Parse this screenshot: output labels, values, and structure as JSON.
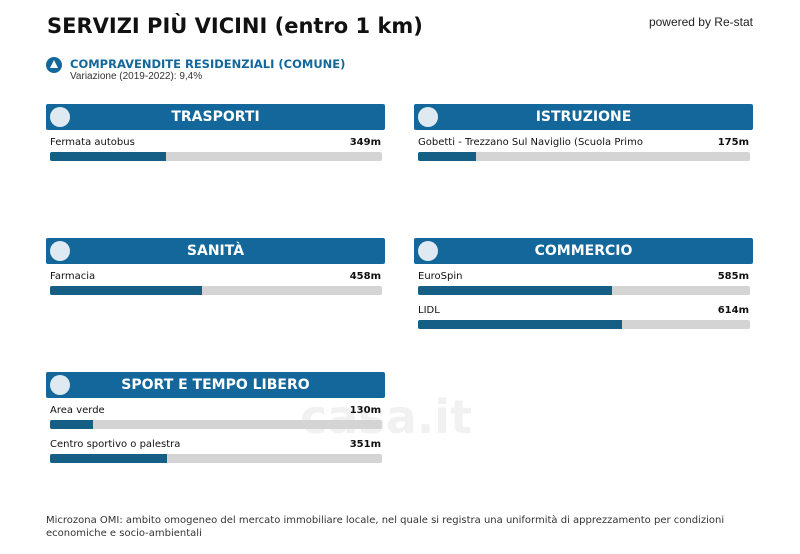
{
  "header": {
    "title": "SERVIZI PIÙ VICINI (entro 1 km)",
    "powered_by": "powered by Re-stat"
  },
  "indicator": {
    "label": "COMPRAVENDITE RESIDENZIALI (COMUNE)",
    "detail": "Variazione (2019-2022): 9,4%"
  },
  "bar_max": 1000,
  "sections": [
    {
      "title": "TRASPORTI",
      "items": [
        {
          "name": "Fermata autobus",
          "distance": 349,
          "distance_label": "349m"
        }
      ]
    },
    {
      "title": "ISTRUZIONE",
      "items": [
        {
          "name": "Gobetti - Trezzano Sul Naviglio (Scuola Primo",
          "distance": 175,
          "distance_label": "175m"
        }
      ]
    },
    {
      "title": "SANITÀ",
      "items": [
        {
          "name": "Farmacia",
          "distance": 458,
          "distance_label": "458m"
        }
      ]
    },
    {
      "title": "COMMERCIO",
      "items": [
        {
          "name": "EuroSpin",
          "distance": 585,
          "distance_label": "585m"
        },
        {
          "name": "LIDL",
          "distance": 614,
          "distance_label": "614m"
        }
      ]
    },
    {
      "title": "SPORT E TEMPO LIBERO",
      "items": [
        {
          "name": "Area verde",
          "distance": 130,
          "distance_label": "130m"
        },
        {
          "name": "Centro sportivo o palestra",
          "distance": 351,
          "distance_label": "351m"
        }
      ]
    }
  ],
  "watermark": "casa.it",
  "footer": "Microzona OMI: ambito omogeneo del mercato immobiliare locale, nel quale si registra una uniformità di apprezzamento per condizioni economiche e socio-ambientali"
}
